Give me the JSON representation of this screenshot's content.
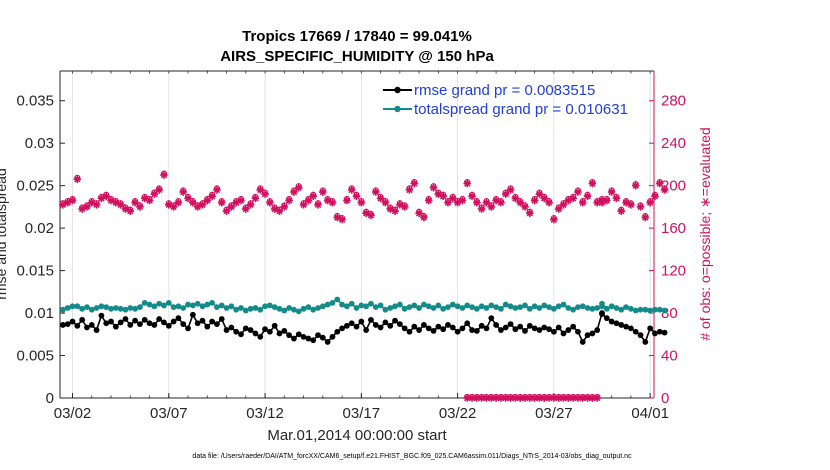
{
  "chart_data": {
    "type": "line",
    "title_line1": "Tropics 17669 / 17840 = 99.041%",
    "title_line2": "AIRS_SPECIFIC_HUMIDITY @ 150 hPa",
    "xlabel": "Mar.01,2014 00:00:00 start",
    "ylabel_left": "rmse and totalspread",
    "ylabel_right": "# of obs: o=possible; ∗=evaluated",
    "footnote": "data file: /Users/raeder/DAI/ATM_forcXX/CAM6_setup/f.e21.FHIST_BGC.f09_025.CAM6assim.011/Diags_NTrS_2014-03/obs_diag_output.nc",
    "xlim": [
      1.35,
      32.2
    ],
    "ylim_left": [
      0,
      0.0385
    ],
    "ylim_right": [
      0,
      308
    ],
    "x_ticks": [
      2,
      7,
      12,
      17,
      22,
      27,
      32
    ],
    "x_tick_labels": [
      "03/02",
      "03/07",
      "03/12",
      "03/17",
      "03/22",
      "03/27",
      "04/01"
    ],
    "y_left_ticks": [
      0,
      0.005,
      0.01,
      0.015,
      0.02,
      0.025,
      0.03,
      0.035
    ],
    "y_left_tick_labels": [
      "0",
      "0.005",
      "0.01",
      "0.015",
      "0.02",
      "0.025",
      "0.03",
      "0.035"
    ],
    "y_right_ticks": [
      0,
      40,
      80,
      120,
      160,
      200,
      240,
      280
    ],
    "y_right_tick_labels": [
      "0",
      "40",
      "80",
      "120",
      "160",
      "200",
      "240",
      "280"
    ],
    "colors": {
      "rmse": "#000000",
      "spread": "#138b8b",
      "obs": "#d0115f",
      "legend_text": "#1f3fd6"
    },
    "legend": [
      {
        "name": "rmse grand pr = 0.0083515",
        "color": "#000000"
      },
      {
        "name": "totalspread grand pr = 0.010631",
        "color": "#138b8b"
      }
    ],
    "segments": [
      {
        "x_start": 1.5,
        "x_step": 0.25,
        "rmse": [
          0.0086,
          0.0087,
          0.009,
          0.0085,
          0.0092,
          0.0083,
          0.0086,
          0.008,
          0.0097,
          0.0088,
          0.009,
          0.0084,
          0.0089,
          0.0093,
          0.0086,
          0.0091,
          0.0087,
          0.0092,
          0.0088,
          0.0086,
          0.0093,
          0.0089,
          0.0085,
          0.009,
          0.0094,
          0.0087,
          0.0082,
          0.0098,
          0.0088,
          0.0091,
          0.0084,
          0.009,
          0.0087,
          0.0093,
          0.008,
          0.0083,
          0.0078,
          0.0075,
          0.0082,
          0.008,
          0.0076,
          0.0072,
          0.0081,
          0.0078,
          0.0085,
          0.0076,
          0.0079,
          0.0074,
          0.007,
          0.0075,
          0.0072,
          0.007,
          0.0068,
          0.0074,
          0.0071,
          0.0066,
          0.0072,
          0.0078,
          0.0082,
          0.0085,
          0.0088,
          0.0084,
          0.009,
          0.008,
          0.0092,
          0.0086,
          0.0083,
          0.0089,
          0.0085,
          0.0091,
          0.0087,
          0.0082,
          0.0078,
          0.0084,
          0.008,
          0.0086,
          0.0082,
          0.0079,
          0.0084,
          0.0081,
          0.0086,
          0.0083,
          0.0078,
          0.0082,
          0.0088,
          0.008,
          0.0079,
          0.0085,
          0.0082,
          0.0094,
          0.0086,
          0.008,
          0.0083,
          0.0087,
          0.0081,
          0.0084,
          0.0079,
          0.0085,
          0.0082,
          0.008,
          0.0083,
          0.0081,
          0.0078,
          0.0083,
          0.0076,
          0.008,
          0.0084,
          0.0078,
          0.0066,
          0.0074,
          0.0076,
          0.008,
          0.01
        ],
        "spread": [
          0.0104,
          0.0106,
          0.0108,
          0.0108,
          0.0105,
          0.0107,
          0.0104,
          0.0106,
          0.0108,
          0.0107,
          0.0105,
          0.0106,
          0.0105,
          0.0104,
          0.0106,
          0.0105,
          0.0107,
          0.0112,
          0.011,
          0.0108,
          0.0111,
          0.0109,
          0.0112,
          0.0107,
          0.0108,
          0.0106,
          0.011,
          0.0109,
          0.0111,
          0.0108,
          0.011,
          0.0112,
          0.0107,
          0.0109,
          0.0106,
          0.0108,
          0.0104,
          0.0106,
          0.0103,
          0.0105,
          0.0106,
          0.0104,
          0.0108,
          0.0109,
          0.0107,
          0.0105,
          0.0103,
          0.0106,
          0.0104,
          0.0102,
          0.0105,
          0.0107,
          0.0104,
          0.0106,
          0.0108,
          0.011,
          0.0112,
          0.0116,
          0.011,
          0.0108,
          0.0111,
          0.0106,
          0.0109,
          0.0108,
          0.0111,
          0.0107,
          0.0109,
          0.0104,
          0.0106,
          0.0108,
          0.011,
          0.0105,
          0.0107,
          0.0109,
          0.0106,
          0.011,
          0.0108,
          0.0106,
          0.0109,
          0.0105,
          0.0107,
          0.011,
          0.0108,
          0.0106,
          0.0109,
          0.0107,
          0.0105,
          0.0108,
          0.0106,
          0.0109,
          0.0107,
          0.0105,
          0.011,
          0.0108,
          0.0106,
          0.0107,
          0.0109,
          0.0105,
          0.0108,
          0.0106,
          0.0109,
          0.0107,
          0.0105,
          0.0108,
          0.011,
          0.0106,
          0.0104,
          0.0107,
          0.0108,
          0.0106,
          0.0105,
          0.0106,
          0.0108
        ]
      },
      {
        "x_start": 29.5,
        "x_step": 0.25,
        "rmse": [
          0.0099,
          0.0094,
          0.009,
          0.0088,
          0.0086,
          0.0084,
          0.0082,
          0.0078,
          0.0074,
          0.0066,
          0.0082,
          0.0076,
          0.0078,
          0.0077
        ],
        "spread": [
          0.0111,
          0.0105,
          0.0108,
          0.0106,
          0.0104,
          0.0107,
          0.0105,
          0.0103,
          0.0104,
          0.0104,
          0.0103,
          0.0104,
          0.0104,
          0.0103
        ]
      }
    ],
    "obs_segments": [
      {
        "x_start": 1.5,
        "x_step": 0.25,
        "values": [
          182,
          184,
          186,
          206,
          178,
          180,
          184,
          182,
          188,
          190,
          186,
          184,
          182,
          178,
          176,
          184,
          180,
          188,
          186,
          192,
          196,
          210,
          182,
          180,
          184,
          194,
          188,
          184,
          180,
          182,
          186,
          190,
          196,
          184,
          176,
          180,
          184,
          186,
          178,
          182,
          188,
          196,
          192,
          184,
          178,
          176,
          180,
          186,
          194,
          198,
          182,
          186,
          190,
          182,
          194,
          186,
          184,
          170,
          168,
          186,
          196,
          190,
          184,
          174,
          172,
          194,
          188,
          184,
          178,
          176,
          182,
          180,
          196,
          202,
          174,
          170,
          186,
          198,
          192,
          190,
          184,
          188,
          184,
          186,
          202,
          190,
          184,
          178,
          184,
          180,
          186,
          184,
          192,
          196,
          188,
          184,
          180,
          174,
          186,
          192,
          188,
          184,
          168,
          178,
          182,
          186,
          188,
          194,
          184,
          190,
          202,
          184,
          186
        ]
      },
      {
        "x_start": 29.5,
        "x_step": 0.25,
        "values": [
          184,
          186,
          194,
          188,
          176,
          184,
          182,
          200,
          180,
          170,
          184,
          190,
          202,
          196
        ]
      }
    ],
    "obs_zero_line": {
      "x_start": 22.5,
      "x_end": 29.25,
      "x_step": 0.25,
      "value": 0
    }
  }
}
